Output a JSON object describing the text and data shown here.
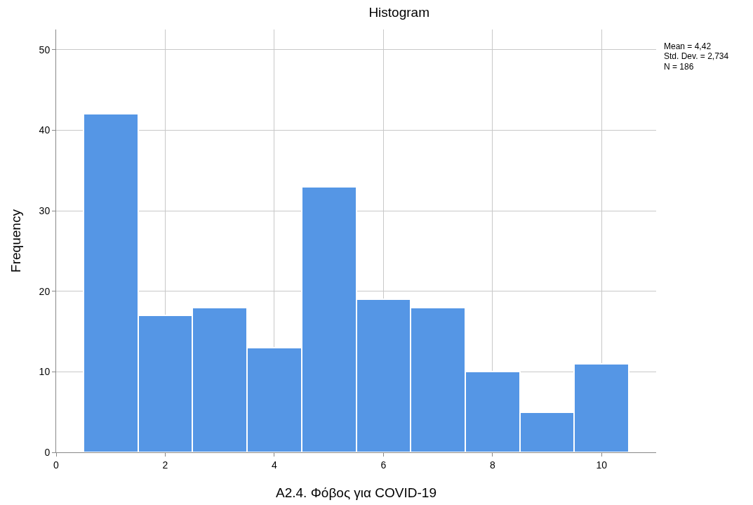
{
  "chart_data": {
    "type": "histogram",
    "title": "Histogram",
    "xlabel": "A2.4. Φόβος για COVID-19",
    "ylabel": "Frequency",
    "bins": [
      0.5,
      1.5,
      2.5,
      3.5,
      4.5,
      5.5,
      6.5,
      7.5,
      8.5,
      9.5,
      10.5
    ],
    "values": [
      42,
      17,
      18,
      13,
      33,
      19,
      18,
      10,
      5,
      11
    ],
    "color": "#5596e5",
    "xlim": [
      0,
      11
    ],
    "xticks": [
      0,
      2,
      4,
      6,
      8,
      10
    ],
    "ylim": [
      0,
      52.5
    ],
    "yticks": [
      0,
      10,
      20,
      30,
      40,
      50
    ],
    "grid": true,
    "annotations": [
      "Mean = 4,42",
      "Std. Dev. = 2,734",
      "N = 186"
    ]
  }
}
